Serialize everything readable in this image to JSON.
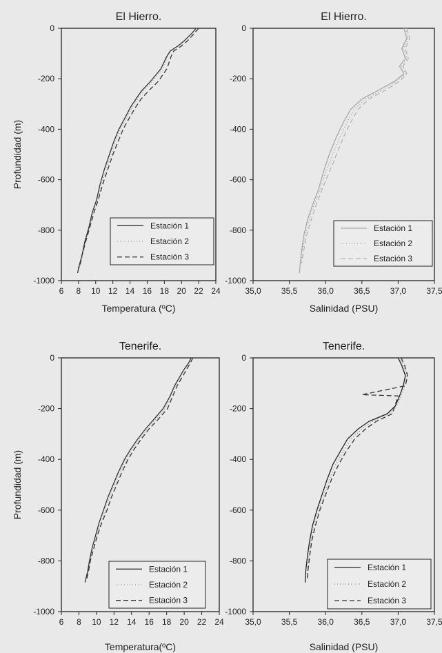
{
  "chart_data": [
    {
      "type": "line",
      "title": "El Hierro.",
      "xlabel": "Temperatura (ºC)",
      "ylabel": "Profundidad (m)",
      "xlim": [
        6,
        24
      ],
      "ylim": [
        -1000,
        0
      ],
      "xticks": [
        "6",
        "8",
        "10",
        "12",
        "14",
        "16",
        "18",
        "20",
        "22",
        "24"
      ],
      "yticks": [
        "0",
        "-200",
        "-400",
        "-600",
        "-800",
        "-1000"
      ],
      "legend_position": "bottom-right",
      "series": [
        {
          "name": "Estación 1",
          "style": "solid",
          "color": "#333333",
          "x": [
            21.7,
            21.2,
            20.3,
            19.6,
            18.7,
            18.3,
            17.6,
            16.4,
            15.3,
            14.7,
            14.1,
            13.5,
            12.7,
            12.1,
            11.6,
            11.0,
            10.5,
            10.1,
            9.6,
            9.2,
            8.7,
            8.4,
            8.0,
            7.9
          ],
          "y": [
            0,
            -20,
            -50,
            -70,
            -90,
            -110,
            -160,
            -210,
            -250,
            -280,
            -310,
            -350,
            -400,
            -450,
            -500,
            -560,
            -620,
            -680,
            -730,
            -790,
            -850,
            -900,
            -950,
            -970
          ]
        },
        {
          "name": "Estación 2",
          "style": "dotted",
          "color": "#9a9a9a",
          "x": [
            21.8,
            21.3,
            20.4,
            19.7,
            18.8,
            18.4,
            17.8,
            16.6,
            15.5,
            14.9,
            14.3,
            13.7,
            12.9,
            12.3,
            11.8,
            11.2,
            10.7,
            10.2,
            9.7,
            9.3,
            8.8,
            8.5,
            8.1
          ],
          "y": [
            0,
            -20,
            -50,
            -70,
            -90,
            -110,
            -160,
            -210,
            -250,
            -280,
            -310,
            -350,
            -400,
            -450,
            -500,
            -560,
            -620,
            -680,
            -730,
            -790,
            -850,
            -900,
            -950
          ]
        },
        {
          "name": "Estación 3",
          "style": "dashed",
          "color": "#333333",
          "x": [
            22.0,
            21.5,
            20.7,
            20.0,
            19.1,
            18.8,
            18.3,
            17.3,
            16.1,
            15.3,
            14.7,
            14.0,
            13.2,
            12.6,
            12.0,
            11.4,
            10.8,
            10.3,
            9.8,
            9.3,
            8.8,
            8.4,
            8.1
          ],
          "y": [
            0,
            -20,
            -50,
            -70,
            -90,
            -110,
            -160,
            -210,
            -250,
            -280,
            -310,
            -350,
            -400,
            -450,
            -500,
            -560,
            -620,
            -680,
            -730,
            -790,
            -850,
            -900,
            -950
          ]
        }
      ]
    },
    {
      "type": "line",
      "title": "El Hierro.",
      "xlabel": "Salinidad (PSU)",
      "ylabel": "",
      "xlim": [
        35.0,
        37.5
      ],
      "ylim": [
        -1000,
        0
      ],
      "xticks": [
        "35,0",
        "35,5",
        "36,0",
        "36,5",
        "37,0",
        "37,5"
      ],
      "yticks": [
        "0",
        "-200",
        "-400",
        "-600",
        "-800",
        "-1000"
      ],
      "legend_position": "bottom-right",
      "series": [
        {
          "name": "Estación 1",
          "style": "solid",
          "color": "#a8a8a8",
          "x": [
            37.08,
            37.12,
            37.05,
            37.1,
            37.02,
            37.08,
            36.95,
            36.7,
            36.5,
            36.35,
            36.25,
            36.15,
            36.05,
            35.97,
            35.9,
            35.82,
            35.75,
            35.7,
            35.67,
            35.65,
            35.64
          ],
          "y": [
            0,
            -40,
            -80,
            -120,
            -150,
            -180,
            -210,
            -250,
            -280,
            -320,
            -370,
            -430,
            -500,
            -570,
            -640,
            -700,
            -760,
            -820,
            -880,
            -930,
            -970
          ]
        },
        {
          "name": "Estación 2",
          "style": "dotted",
          "color": "#999999",
          "x": [
            37.1,
            37.14,
            37.07,
            37.12,
            37.05,
            37.1,
            36.98,
            36.75,
            36.55,
            36.4,
            36.3,
            36.2,
            36.1,
            36.0,
            35.92,
            35.84,
            35.77,
            35.72,
            35.68,
            35.66
          ],
          "y": [
            0,
            -40,
            -80,
            -120,
            -150,
            -180,
            -210,
            -250,
            -280,
            -320,
            -370,
            -430,
            -500,
            -570,
            -640,
            -700,
            -760,
            -820,
            -880,
            -930
          ]
        },
        {
          "name": "Estación 3",
          "style": "dashed",
          "color": "#b5b5b5",
          "x": [
            37.12,
            37.16,
            37.1,
            37.14,
            37.07,
            37.12,
            37.02,
            36.8,
            36.6,
            36.45,
            36.35,
            36.25,
            36.15,
            36.05,
            35.95,
            35.87,
            35.8,
            35.74,
            35.7,
            35.67
          ],
          "y": [
            0,
            -40,
            -80,
            -120,
            -150,
            -180,
            -210,
            -250,
            -280,
            -320,
            -370,
            -430,
            -500,
            -570,
            -640,
            -700,
            -760,
            -820,
            -880,
            -930
          ]
        }
      ]
    },
    {
      "type": "line",
      "title": "Tenerife.",
      "xlabel": "Temperatura(ºC)",
      "ylabel": "Profundidad (m)",
      "xlim": [
        6,
        24
      ],
      "ylim": [
        -1000,
        0
      ],
      "xticks": [
        "6",
        "8",
        "10",
        "12",
        "14",
        "16",
        "18",
        "20",
        "22",
        "24"
      ],
      "yticks": [
        "0",
        "-200",
        "-400",
        "-600",
        "-800",
        "-1000"
      ],
      "legend_position": "bottom-right",
      "series": [
        {
          "name": "Estación 1",
          "style": "solid",
          "color": "#333333",
          "x": [
            20.8,
            20.5,
            19.9,
            19.4,
            18.9,
            18.4,
            17.6,
            16.6,
            15.6,
            14.7,
            13.9,
            13.2,
            12.5,
            11.9,
            11.3,
            10.8,
            10.3,
            9.9,
            9.5,
            9.2,
            9.0,
            8.8,
            8.7
          ],
          "y": [
            0,
            -20,
            -50,
            -80,
            -110,
            -150,
            -200,
            -240,
            -280,
            -320,
            -360,
            -400,
            -450,
            -500,
            -550,
            -600,
            -650,
            -700,
            -750,
            -800,
            -840,
            -870,
            -885
          ]
        },
        {
          "name": "Estación 2",
          "style": "dotted",
          "color": "#9a9a9a",
          "x": [
            20.9,
            20.6,
            20.0,
            19.5,
            19.0,
            18.5,
            17.8,
            16.8,
            15.8,
            14.9,
            14.1,
            13.4,
            12.7,
            12.1,
            11.5,
            11.0,
            10.5,
            10.0,
            9.6,
            9.3,
            9.1,
            8.9
          ],
          "y": [
            0,
            -20,
            -50,
            -80,
            -110,
            -150,
            -200,
            -240,
            -280,
            -320,
            -360,
            -400,
            -450,
            -500,
            -550,
            -600,
            -650,
            -700,
            -750,
            -800,
            -840,
            -870
          ]
        },
        {
          "name": "Estación 3",
          "style": "dashed",
          "color": "#333333",
          "x": [
            21.0,
            20.7,
            20.2,
            19.7,
            19.2,
            18.7,
            18.1,
            17.1,
            16.0,
            15.1,
            14.3,
            13.6,
            12.9,
            12.3,
            11.7,
            11.2,
            10.6,
            10.1,
            9.7,
            9.3,
            9.1,
            8.9
          ],
          "y": [
            0,
            -20,
            -50,
            -80,
            -110,
            -150,
            -200,
            -240,
            -280,
            -320,
            -360,
            -400,
            -450,
            -500,
            -550,
            -600,
            -650,
            -700,
            -750,
            -800,
            -840,
            -870
          ]
        }
      ]
    },
    {
      "type": "line",
      "title": "Tenerife.",
      "xlabel": "Salinidad (PSU)",
      "ylabel": "",
      "xlim": [
        35.0,
        37.5
      ],
      "ylim": [
        -1000,
        0
      ],
      "xticks": [
        "35,0",
        "35,5",
        "36,0",
        "36,5",
        "37,0",
        "37,5"
      ],
      "yticks": [
        "0",
        "-200",
        "-400",
        "-600",
        "-800",
        "-1000"
      ],
      "legend_position": "bottom-right",
      "series": [
        {
          "name": "Estación 1",
          "style": "solid",
          "color": "#222222",
          "x": [
            37.0,
            37.05,
            37.1,
            37.07,
            37.02,
            36.96,
            36.85,
            36.6,
            36.45,
            36.3,
            36.2,
            36.1,
            36.02,
            35.95,
            35.88,
            35.82,
            35.78,
            35.75,
            35.73,
            35.72,
            35.72
          ],
          "y": [
            0,
            -30,
            -70,
            -110,
            -150,
            -190,
            -220,
            -250,
            -280,
            -320,
            -370,
            -420,
            -480,
            -540,
            -600,
            -660,
            -720,
            -780,
            -830,
            -870,
            -885
          ]
        },
        {
          "name": "Estación 2",
          "style": "dotted",
          "color": "#888888",
          "x": [
            37.02,
            37.07,
            37.12,
            37.09,
            37.04,
            36.98,
            36.88,
            36.65,
            36.5,
            36.35,
            36.24,
            36.14,
            36.05,
            35.98,
            35.9,
            35.84,
            35.8,
            35.77,
            35.75,
            35.74
          ],
          "y": [
            0,
            -30,
            -70,
            -110,
            -150,
            -190,
            -220,
            -250,
            -280,
            -320,
            -370,
            -420,
            -480,
            -540,
            -600,
            -660,
            -720,
            -780,
            -830,
            -870
          ]
        },
        {
          "name": "Estación 3",
          "style": "dashed",
          "color": "#333333",
          "x": [
            37.04,
            37.09,
            37.13,
            37.1,
            36.5,
            37.0,
            36.92,
            36.7,
            36.55,
            36.4,
            36.28,
            36.18,
            36.08,
            36.0,
            35.92,
            35.86,
            35.81,
            35.78,
            35.76,
            35.75
          ],
          "y": [
            0,
            -30,
            -70,
            -110,
            -145,
            -150,
            -220,
            -250,
            -280,
            -320,
            -370,
            -420,
            -480,
            -540,
            -600,
            -660,
            -720,
            -780,
            -830,
            -870
          ]
        }
      ]
    }
  ]
}
